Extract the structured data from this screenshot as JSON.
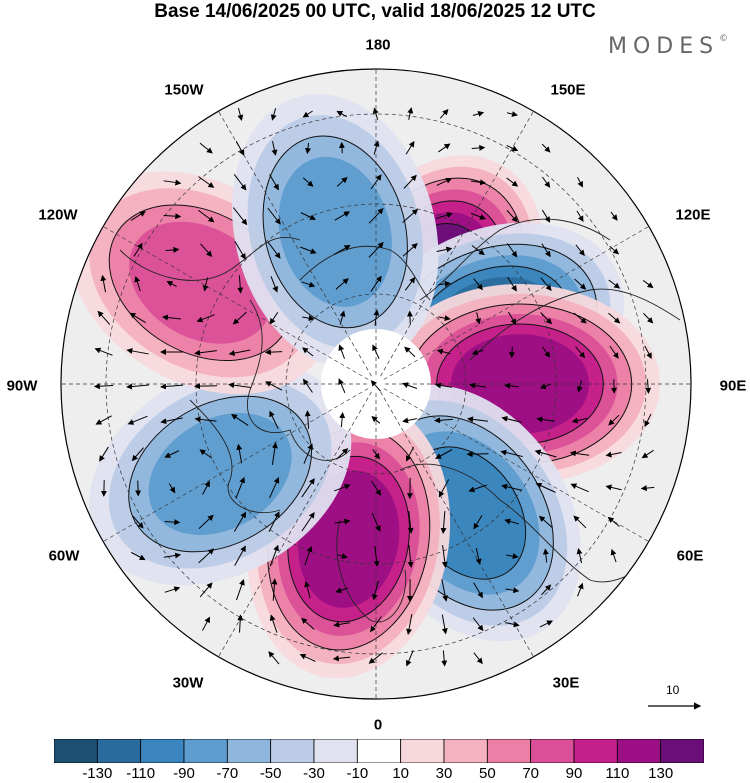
{
  "title": "Base 14/06/2025 00 UTC, valid 18/06/2025 12 UTC",
  "brand": "MODES",
  "brand_mark": "©",
  "longitude_labels": {
    "n180": "180",
    "e150": "150E",
    "e120": "120E",
    "e90": "90E",
    "e60": "60E",
    "e30": "30E",
    "n0": "0",
    "w30": "30W",
    "w60": "60W",
    "w90": "90W",
    "w120": "120W",
    "w150": "150W"
  },
  "vector_scale_label": "10",
  "colorbar": {
    "ticks": [
      "-130",
      "-110",
      "-90",
      "-70",
      "-50",
      "-30",
      "-10",
      "10",
      "30",
      "50",
      "70",
      "90",
      "110",
      "130"
    ],
    "colors": [
      "#1c4f72",
      "#2a6b9d",
      "#3a85bd",
      "#5e9ccf",
      "#8fb6dd",
      "#bccbe6",
      "#e0e2f0",
      "#ffffff",
      "#f7d9dd",
      "#f4b1bf",
      "#ec7fa6",
      "#db4f98",
      "#c41f8a",
      "#9c0f84",
      "#6b0f78"
    ]
  },
  "anomaly_centers": [
    {
      "lon_lat": "150E 65N",
      "value": 130
    },
    {
      "lon_lat": "115E 62N",
      "value": -120
    },
    {
      "lon_lat": "90E 58N",
      "value": 120
    },
    {
      "lon_lat": "35E 55N",
      "value": -90
    },
    {
      "lon_lat": "10W 55N",
      "value": 110
    },
    {
      "lon_lat": "60W 50N",
      "value": -80
    },
    {
      "lon_lat": "120W 45N",
      "value": 80
    },
    {
      "lon_lat": "165W 55N",
      "value": -70
    }
  ]
}
